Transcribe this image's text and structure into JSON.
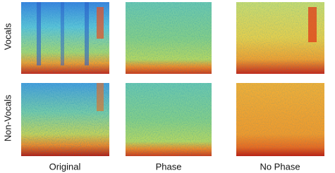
{
  "row_labels": [
    "Vocals",
    "Non-Vocals"
  ],
  "column_labels": [
    "Original",
    "Phase",
    "No Phase"
  ]
}
